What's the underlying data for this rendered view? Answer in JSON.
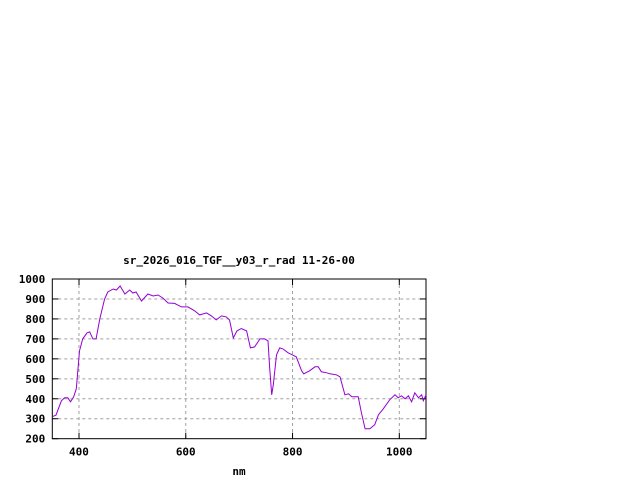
{
  "chart_data": {
    "type": "line",
    "title": "sr_2026_016_TGF__y03_r_rad 11-26-00",
    "xlabel": "nm",
    "ylabel": "",
    "xlim": [
      350,
      1050
    ],
    "ylim": [
      200,
      1000
    ],
    "xticks": [
      400,
      600,
      800,
      1000
    ],
    "yticks": [
      200,
      300,
      400,
      500,
      600,
      700,
      800,
      900,
      1000
    ],
    "grid": true,
    "line_color": "#9400d3",
    "series": [
      {
        "x": [
          350,
          357,
          367,
          373,
          379,
          384,
          390,
          395,
          401,
          407,
          415,
          420,
          426,
          432,
          439,
          448,
          454,
          464,
          470,
          477,
          486,
          495,
          501,
          507,
          517,
          529,
          539,
          548,
          557,
          567,
          579,
          592,
          604,
          617,
          626,
          639,
          648,
          657,
          667,
          676,
          682,
          689,
          696,
          704,
          714,
          721,
          729,
          739,
          748,
          754,
          757,
          761,
          764,
          770,
          776,
          782,
          792,
          800,
          807,
          817,
          821,
          832,
          842,
          848,
          854,
          864,
          870,
          882,
          889,
          898,
          905,
          911,
          923,
          929,
          936,
          945,
          954,
          961,
          970,
          982,
          992,
          998,
          1004,
          1011,
          1017,
          1023,
          1029,
          1036,
          1042,
          1045,
          1050
        ],
        "y": [
          310,
          318,
          390,
          405,
          405,
          385,
          410,
          450,
          640,
          700,
          730,
          735,
          700,
          700,
          800,
          900,
          935,
          950,
          945,
          965,
          925,
          945,
          930,
          935,
          890,
          925,
          915,
          920,
          905,
          880,
          878,
          860,
          860,
          840,
          820,
          830,
          815,
          795,
          815,
          810,
          795,
          705,
          740,
          752,
          740,
          655,
          660,
          700,
          700,
          690,
          560,
          420,
          470,
          620,
          655,
          650,
          630,
          620,
          610,
          540,
          525,
          540,
          560,
          560,
          535,
          530,
          525,
          520,
          510,
          420,
          425,
          410,
          410,
          330,
          250,
          250,
          270,
          320,
          350,
          395,
          420,
          405,
          415,
          400,
          415,
          385,
          430,
          405,
          420,
          390,
          420
        ]
      }
    ]
  }
}
